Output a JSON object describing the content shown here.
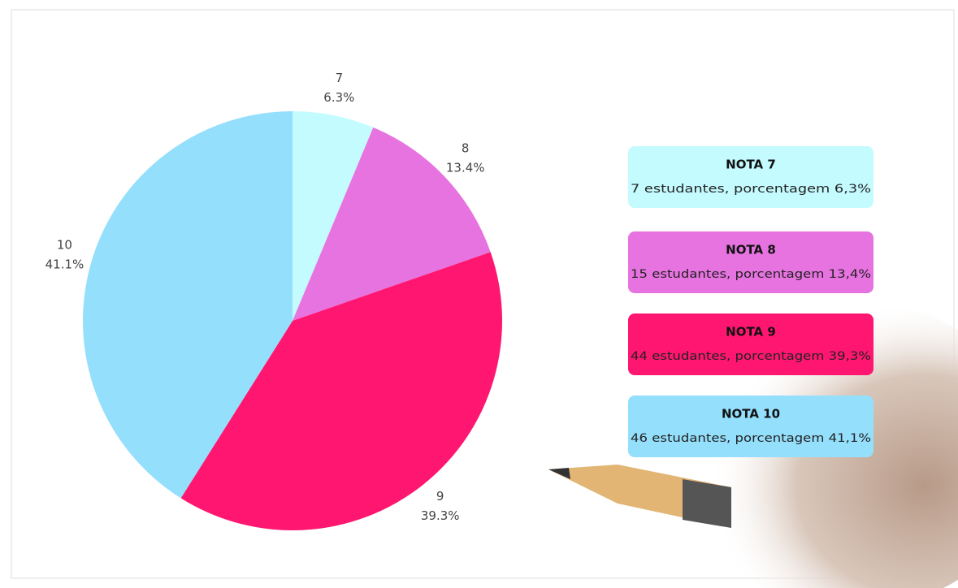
{
  "chart_data": {
    "type": "pie",
    "categories": [
      "7",
      "8",
      "9",
      "10"
    ],
    "values": [
      6.3,
      13.4,
      39.3,
      41.1
    ],
    "value_labels": [
      "6.3%",
      "13.4%",
      "39.3%",
      "41.1%"
    ],
    "colors": [
      "#c4fbff",
      "#e773e0",
      "#ff1670",
      "#94dffc"
    ],
    "annotations": [
      {
        "title": "NOTA 7",
        "text": "7 estudantes, porcentagem 6,3%"
      },
      {
        "title": "NOTA 8",
        "text": "15 estudantes, porcentagem 13,4%"
      },
      {
        "title": "NOTA 9",
        "text": "44 estudantes, porcentagem 39,3%"
      },
      {
        "title": "NOTA 10",
        "text": "46 estudantes, porcentagem 41,1%"
      }
    ]
  }
}
